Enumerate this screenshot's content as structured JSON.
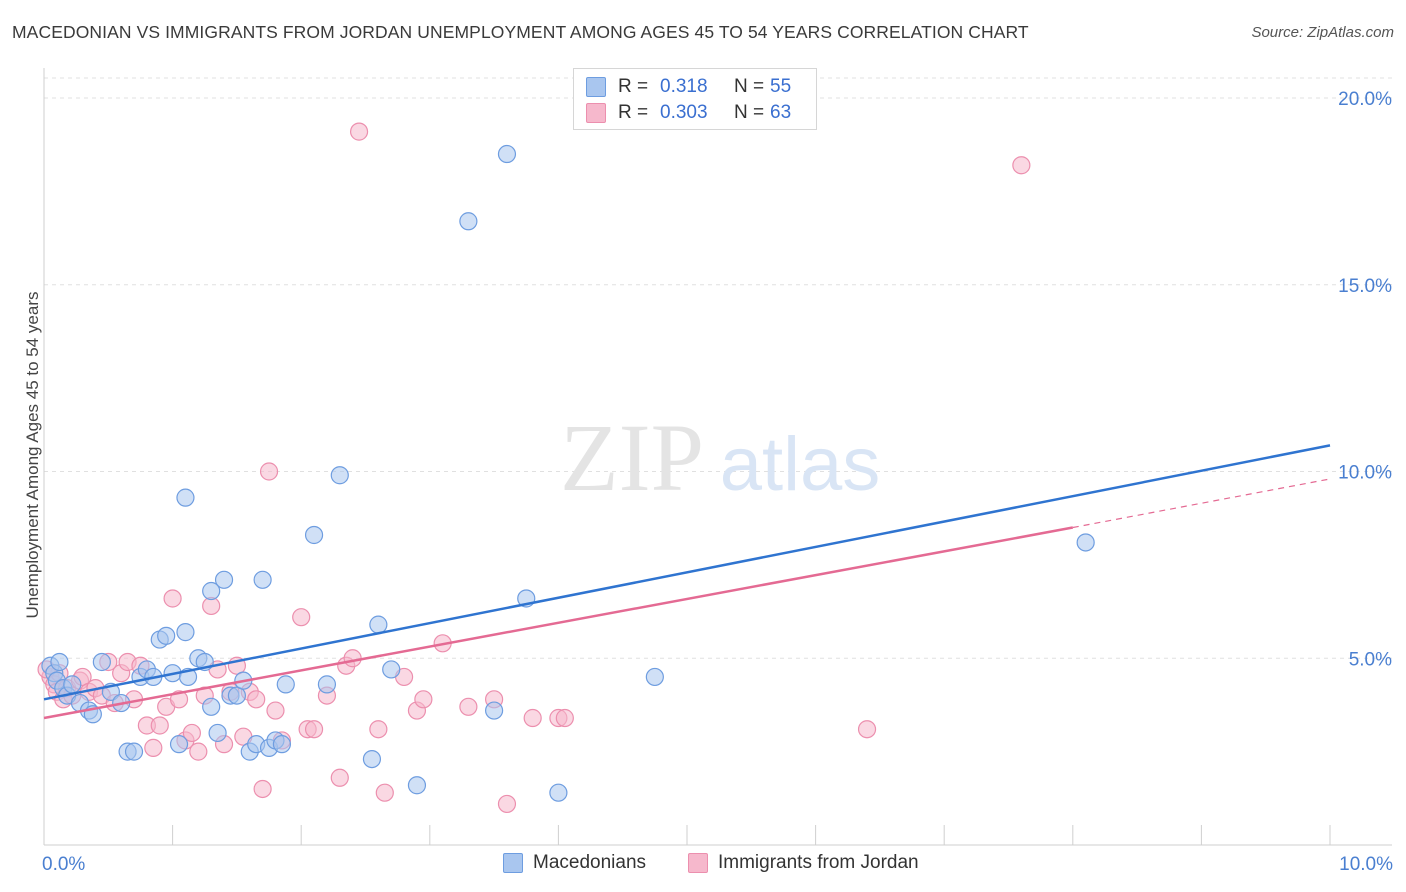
{
  "title": "MACEDONIAN VS IMMIGRANTS FROM JORDAN UNEMPLOYMENT AMONG AGES 45 TO 54 YEARS CORRELATION CHART",
  "source": "Source: ZipAtlas.com",
  "watermark": {
    "zip": "ZIP",
    "atlas": "atlas"
  },
  "colors": {
    "blue_fill": "#a9c6ef",
    "blue_stroke": "#6e9de0",
    "blue_line": "#2f74d0",
    "pink_fill": "#f6b8cc",
    "pink_stroke": "#ec8fae",
    "pink_line": "#e46a93",
    "grid": "#e0e0e0",
    "tick_text": "#4a7fd0"
  },
  "legend": {
    "rows": [
      {
        "r_label": "R =",
        "r_value": "0.318",
        "n_label": "N =",
        "n_value": "55"
      },
      {
        "r_label": "R =",
        "r_value": "0.303",
        "n_label": "N =",
        "n_value": "63"
      }
    ]
  },
  "bottom_legend": {
    "series1": "Macedonians",
    "series2": "Immigrants from Jordan"
  },
  "chart_data": {
    "type": "scatter",
    "title": "MACEDONIAN VS IMMIGRANTS FROM JORDAN UNEMPLOYMENT AMONG AGES 45 TO 54 YEARS CORRELATION CHART",
    "xlabel": "",
    "ylabel": "Unemployment Among Ages 45 to 54 years",
    "xlim": [
      0,
      10
    ],
    "ylim": [
      0,
      20
    ],
    "x_tick_labels": [
      "0.0%",
      "10.0%"
    ],
    "y_ticks": [
      5,
      10,
      15,
      20
    ],
    "y_tick_labels": [
      "5.0%",
      "10.0%",
      "15.0%",
      "20.0%"
    ],
    "grid": true,
    "series": [
      {
        "name": "Macedonians",
        "r": 0.318,
        "n": 55,
        "trend": {
          "x0": 0,
          "y0": 3.9,
          "x1": 10,
          "y1": 10.7
        },
        "points": [
          [
            0.05,
            4.8
          ],
          [
            0.08,
            4.6
          ],
          [
            0.1,
            4.4
          ],
          [
            0.12,
            4.9
          ],
          [
            0.15,
            4.2
          ],
          [
            0.18,
            4.0
          ],
          [
            0.22,
            4.3
          ],
          [
            0.28,
            3.8
          ],
          [
            0.35,
            3.6
          ],
          [
            0.38,
            3.5
          ],
          [
            0.45,
            4.9
          ],
          [
            0.52,
            4.1
          ],
          [
            0.6,
            3.8
          ],
          [
            0.65,
            2.5
          ],
          [
            0.7,
            2.5
          ],
          [
            0.75,
            4.5
          ],
          [
            0.8,
            4.7
          ],
          [
            0.85,
            4.5
          ],
          [
            0.9,
            5.5
          ],
          [
            0.95,
            5.6
          ],
          [
            1.0,
            4.6
          ],
          [
            1.05,
            2.7
          ],
          [
            1.1,
            9.3
          ],
          [
            1.1,
            5.7
          ],
          [
            1.12,
            4.5
          ],
          [
            1.2,
            5.0
          ],
          [
            1.25,
            4.9
          ],
          [
            1.3,
            6.8
          ],
          [
            1.3,
            3.7
          ],
          [
            1.35,
            3.0
          ],
          [
            1.4,
            7.1
          ],
          [
            1.45,
            4.0
          ],
          [
            1.5,
            4.0
          ],
          [
            1.55,
            4.4
          ],
          [
            1.6,
            2.5
          ],
          [
            1.65,
            2.7
          ],
          [
            1.7,
            7.1
          ],
          [
            1.75,
            2.6
          ],
          [
            1.8,
            2.8
          ],
          [
            1.85,
            2.7
          ],
          [
            1.88,
            4.3
          ],
          [
            2.1,
            8.3
          ],
          [
            2.2,
            4.3
          ],
          [
            2.3,
            9.9
          ],
          [
            2.55,
            2.3
          ],
          [
            2.6,
            5.9
          ],
          [
            2.7,
            4.7
          ],
          [
            2.9,
            1.6
          ],
          [
            3.3,
            16.7
          ],
          [
            3.5,
            3.6
          ],
          [
            3.6,
            18.5
          ],
          [
            3.75,
            6.6
          ],
          [
            4.0,
            1.4
          ],
          [
            4.75,
            4.5
          ],
          [
            8.1,
            8.1
          ]
        ]
      },
      {
        "name": "Immigrants from Jordan",
        "r": 0.303,
        "n": 63,
        "trend": {
          "x0": 0,
          "y0": 3.4,
          "x1": 8.0,
          "y1": 8.5
        },
        "trend_dashed": {
          "x0": 8.0,
          "y0": 8.5,
          "x1": 10,
          "y1": 9.8
        },
        "points": [
          [
            0.05,
            4.5
          ],
          [
            0.08,
            4.3
          ],
          [
            0.1,
            4.1
          ],
          [
            0.12,
            4.6
          ],
          [
            0.15,
            3.9
          ],
          [
            0.18,
            4.2
          ],
          [
            0.22,
            4.0
          ],
          [
            0.28,
            4.4
          ],
          [
            0.3,
            4.5
          ],
          [
            0.35,
            4.1
          ],
          [
            0.4,
            4.2
          ],
          [
            0.45,
            4.0
          ],
          [
            0.5,
            4.9
          ],
          [
            0.55,
            3.8
          ],
          [
            0.6,
            4.6
          ],
          [
            0.65,
            4.9
          ],
          [
            0.7,
            3.9
          ],
          [
            0.75,
            4.8
          ],
          [
            0.8,
            3.2
          ],
          [
            0.85,
            2.6
          ],
          [
            0.9,
            3.2
          ],
          [
            0.95,
            3.7
          ],
          [
            1.0,
            6.6
          ],
          [
            1.05,
            3.9
          ],
          [
            1.1,
            2.8
          ],
          [
            1.15,
            3.0
          ],
          [
            1.2,
            2.5
          ],
          [
            1.25,
            4.0
          ],
          [
            1.3,
            6.4
          ],
          [
            1.35,
            4.7
          ],
          [
            1.4,
            2.7
          ],
          [
            1.45,
            4.1
          ],
          [
            1.5,
            4.8
          ],
          [
            1.55,
            2.9
          ],
          [
            1.6,
            4.1
          ],
          [
            1.65,
            3.9
          ],
          [
            1.7,
            1.5
          ],
          [
            1.75,
            10.0
          ],
          [
            1.8,
            3.6
          ],
          [
            1.85,
            2.8
          ],
          [
            2.0,
            6.1
          ],
          [
            2.05,
            3.1
          ],
          [
            2.1,
            3.1
          ],
          [
            2.2,
            4.0
          ],
          [
            2.3,
            1.8
          ],
          [
            2.35,
            4.8
          ],
          [
            2.4,
            5.0
          ],
          [
            2.45,
            19.1
          ],
          [
            2.6,
            3.1
          ],
          [
            2.65,
            1.4
          ],
          [
            2.8,
            4.5
          ],
          [
            2.9,
            3.6
          ],
          [
            2.95,
            3.9
          ],
          [
            3.1,
            5.4
          ],
          [
            3.3,
            3.7
          ],
          [
            3.5,
            3.9
          ],
          [
            3.6,
            1.1
          ],
          [
            3.8,
            3.4
          ],
          [
            4.0,
            3.4
          ],
          [
            4.05,
            3.4
          ],
          [
            6.4,
            3.1
          ],
          [
            7.6,
            18.2
          ],
          [
            0.02,
            4.7
          ]
        ]
      }
    ]
  }
}
